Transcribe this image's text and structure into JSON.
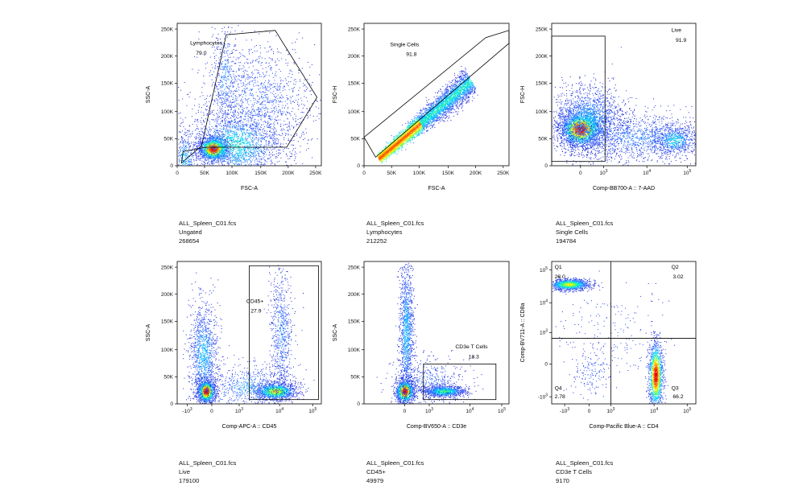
{
  "chart_data": [
    {
      "type": "scatter",
      "density": true,
      "x_axis": {
        "label": "FSC-A",
        "ticks": [
          "0",
          "50K",
          "100K",
          "150K",
          "200K",
          "250K"
        ]
      },
      "y_axis": {
        "label": "SSC-A",
        "ticks": [
          "0",
          "50K",
          "100K",
          "150K",
          "200K",
          "250K"
        ]
      },
      "gate": {
        "shape": "polygon",
        "name": "Lymphocytes",
        "value": "79.0"
      },
      "dataset": {
        "file": "ALL_Spleen_C01.fcs",
        "population": "Ungated",
        "count": "268654"
      }
    },
    {
      "type": "scatter",
      "density": true,
      "x_axis": {
        "label": "FSC-A",
        "ticks": [
          "0",
          "50K",
          "100K",
          "150K",
          "200K",
          "250K"
        ]
      },
      "y_axis": {
        "label": "FSC-H",
        "ticks": [
          "0",
          "50K",
          "100K",
          "150K",
          "200K",
          "250K"
        ]
      },
      "gate": {
        "shape": "polygon",
        "name": "Single Cells",
        "value": "91.8"
      },
      "dataset": {
        "file": "ALL_Spleen_C01.fcs",
        "population": "Lymphocytes",
        "count": "212252"
      }
    },
    {
      "type": "scatter",
      "density": true,
      "x_axis": {
        "label": "Comp-BB700-A :: 7-AAD",
        "ticks": [
          "0",
          "10^3",
          "10^4",
          "10^5"
        ]
      },
      "y_axis": {
        "label": "FSC-H",
        "ticks": [
          "0",
          "50K",
          "100K",
          "150K",
          "200K",
          "250K"
        ]
      },
      "gate": {
        "shape": "rectangle",
        "name": "Live",
        "value": "91.9"
      },
      "dataset": {
        "file": "ALL_Spleen_C01.fcs",
        "population": "Single Cells",
        "count": "194784"
      }
    },
    {
      "type": "scatter",
      "density": true,
      "x_axis": {
        "label": "Comp-APC-A :: CD45",
        "ticks": [
          "-10^3",
          "0",
          "10^3",
          "10^4",
          "10^5"
        ]
      },
      "y_axis": {
        "label": "SSC-A",
        "ticks": [
          "0",
          "50K",
          "100K",
          "150K",
          "200K",
          "250K"
        ]
      },
      "gate": {
        "shape": "rectangle",
        "name": "CD45+",
        "value": "27.9"
      },
      "dataset": {
        "file": "ALL_Spleen_C01.fcs",
        "population": "Live",
        "count": "179100"
      }
    },
    {
      "type": "scatter",
      "density": true,
      "x_axis": {
        "label": "Comp-BV650-A :: CD3e",
        "ticks": [
          "0",
          "10^3",
          "10^4",
          "10^5"
        ]
      },
      "y_axis": {
        "label": "SSC-A",
        "ticks": [
          "0",
          "50K",
          "100K",
          "150K",
          "200K",
          "250K"
        ]
      },
      "gate": {
        "shape": "rectangle",
        "name": "CD3e T Cells",
        "value": "18.3"
      },
      "dataset": {
        "file": "ALL_Spleen_C01.fcs",
        "population": "CD45+",
        "count": "49979"
      }
    },
    {
      "type": "scatter",
      "density": true,
      "x_axis": {
        "label": "Comp-Pacific Blue-A :: CD4",
        "ticks": [
          "-10^3",
          "0",
          "10^3",
          "10^4",
          "10^5"
        ]
      },
      "y_axis": {
        "label": "Comp-BV711-A :: CD8a",
        "ticks": [
          "-10^3",
          "0",
          "10^3",
          "10^4",
          "10^5"
        ]
      },
      "quadrants": [
        {
          "name": "Q1",
          "value": "28.0"
        },
        {
          "name": "Q2",
          "value": "3.02"
        },
        {
          "name": "Q3",
          "value": "66.2"
        },
        {
          "name": "Q4",
          "value": "2.78"
        }
      ],
      "dataset": {
        "file": "ALL_Spleen_C01.fcs",
        "population": "CD3e T Cells",
        "count": "9170"
      }
    }
  ]
}
